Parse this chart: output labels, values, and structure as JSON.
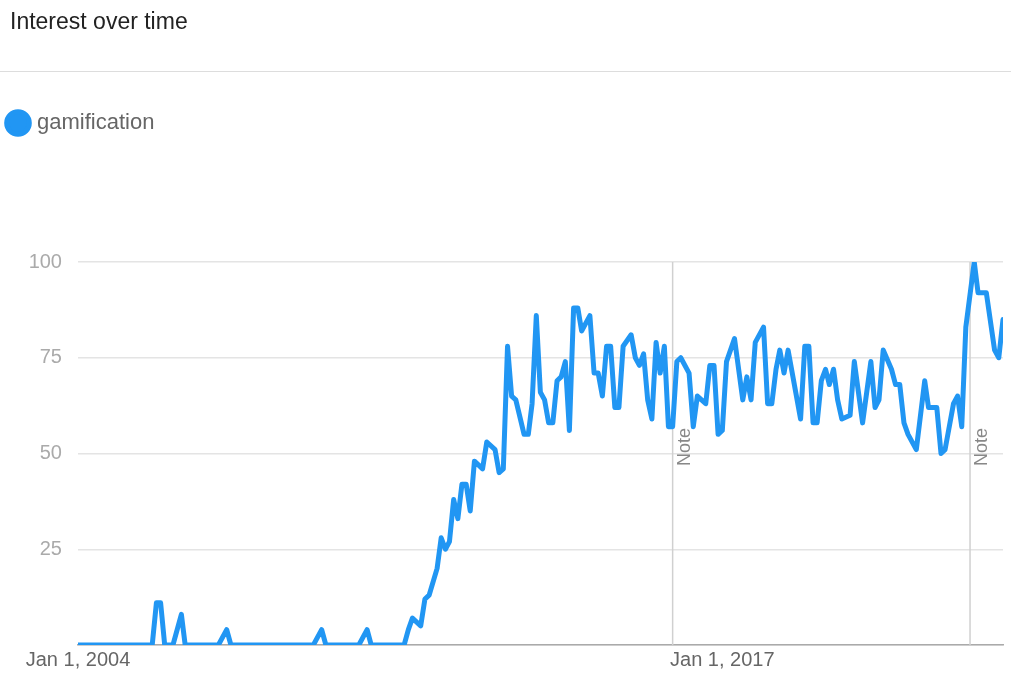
{
  "chart_data": {
    "type": "line",
    "title": "Interest over time",
    "legend": "top left",
    "grid": "y",
    "line_style": "solid",
    "xlim": [
      "2004-01",
      "2022-09"
    ],
    "xticks": [
      {
        "value": "2004-01",
        "label": "Jan 1, 2004"
      },
      {
        "value": "2017-01",
        "label": "Jan 1, 2017"
      }
    ],
    "ylim": [
      0,
      100
    ],
    "yticks": [
      {
        "value": 0,
        "label": null
      },
      25,
      50,
      75,
      100
    ],
    "ref_lines": [
      {
        "axis": "x",
        "value": "2016-01",
        "label": "Note",
        "color": "#d0d0d0"
      },
      {
        "axis": "x",
        "value": "2022-01",
        "label": "Note",
        "color": "#d0d0d0"
      }
    ],
    "series": [
      {
        "name": "gamification",
        "color": "#2196f3",
        "x": [
          "2004-01",
          "2005-07",
          "2005-08",
          "2005-09",
          "2005-10",
          "2005-12",
          "2006-02",
          "2006-03",
          "2006-11",
          "2007-01",
          "2007-02",
          "2008-10",
          "2008-12",
          "2009-01",
          "2009-09",
          "2009-11",
          "2009-12",
          "2010-08",
          "2010-09",
          "2010-10",
          "2010-12",
          "2011-01",
          "2011-02",
          "2011-04",
          "2011-05",
          "2011-06",
          "2011-07",
          "2011-08",
          "2011-09",
          "2011-10",
          "2011-11",
          "2011-12",
          "2012-01",
          "2012-03",
          "2012-04",
          "2012-06",
          "2012-07",
          "2012-08",
          "2012-09",
          "2012-10",
          "2012-11",
          "2013-01",
          "2013-02",
          "2013-03",
          "2013-04",
          "2013-05",
          "2013-06",
          "2013-07",
          "2013-08",
          "2013-09",
          "2013-10",
          "2013-11",
          "2013-12",
          "2014-01",
          "2014-02",
          "2014-03",
          "2014-05",
          "2014-06",
          "2014-07",
          "2014-08",
          "2014-09",
          "2014-10",
          "2014-11",
          "2014-12",
          "2015-01",
          "2015-03",
          "2015-04",
          "2015-05",
          "2015-06",
          "2015-07",
          "2015-08",
          "2015-09",
          "2015-10",
          "2015-11",
          "2015-12",
          "2016-01",
          "2016-02",
          "2016-03",
          "2016-05",
          "2016-06",
          "2016-07",
          "2016-09",
          "2016-10",
          "2016-11",
          "2016-12",
          "2017-01",
          "2017-02",
          "2017-04",
          "2017-06",
          "2017-07",
          "2017-08",
          "2017-09",
          "2017-11",
          "2017-12",
          "2018-01",
          "2018-02",
          "2018-03",
          "2018-04",
          "2018-05",
          "2018-08",
          "2018-09",
          "2018-10",
          "2018-11",
          "2018-12",
          "2019-01",
          "2019-02",
          "2019-03",
          "2019-04",
          "2019-05",
          "2019-06",
          "2019-08",
          "2019-09",
          "2019-11",
          "2020-01",
          "2020-02",
          "2020-03",
          "2020-04",
          "2020-06",
          "2020-07",
          "2020-08",
          "2020-09",
          "2020-10",
          "2020-12",
          "2021-02",
          "2021-03",
          "2021-05",
          "2021-06",
          "2021-07",
          "2021-09",
          "2021-10",
          "2021-11",
          "2021-12",
          "2022-02",
          "2022-03",
          "2022-05",
          "2022-07",
          "2022-08",
          "2022-09"
        ],
        "values": [
          0,
          0,
          11,
          11,
          0,
          0,
          8,
          0,
          0,
          4,
          0,
          0,
          4,
          0,
          0,
          4,
          0,
          0,
          4,
          7,
          5,
          12,
          13,
          20,
          28,
          25,
          27,
          38,
          33,
          42,
          42,
          35,
          48,
          46,
          53,
          51,
          45,
          46,
          78,
          65,
          64,
          55,
          55,
          63,
          86,
          66,
          64,
          58,
          58,
          69,
          70,
          74,
          56,
          88,
          88,
          82,
          86,
          71,
          71,
          65,
          78,
          78,
          62,
          62,
          78,
          81,
          75,
          73,
          76,
          64,
          59,
          79,
          71,
          78,
          57,
          57,
          74,
          75,
          71,
          57,
          65,
          63,
          73,
          73,
          55,
          56,
          74,
          80,
          64,
          70,
          64,
          79,
          83,
          63,
          63,
          72,
          77,
          71,
          77,
          59,
          78,
          78,
          58,
          58,
          69,
          72,
          68,
          72,
          64,
          59,
          60,
          74,
          58,
          74,
          62,
          64,
          77,
          72,
          68,
          68,
          58,
          55,
          51,
          69,
          62,
          62,
          50,
          51,
          63,
          65,
          57,
          83,
          100,
          92,
          92,
          77,
          75,
          85
        ]
      }
    ]
  }
}
